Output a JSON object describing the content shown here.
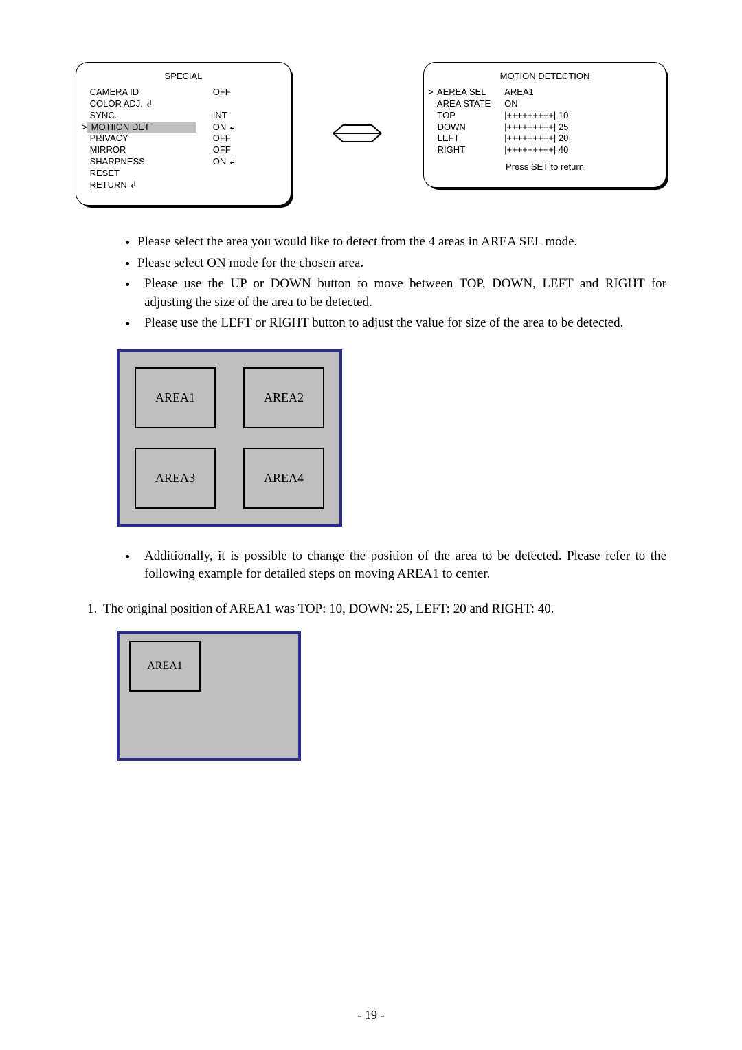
{
  "colors": {
    "page_bg": "#ffffff",
    "text": "#000000",
    "highlight_bg": "#bfbfbf",
    "panel_border": "#2c2c8a",
    "panel_bg": "#bfbfbf"
  },
  "left_menu": {
    "title": "SPECIAL",
    "items": [
      {
        "label": "CAMERA ID",
        "value": "OFF",
        "caret": false,
        "highlight": false,
        "label_enter": false,
        "value_enter": false
      },
      {
        "label": "COLOR ADJ.",
        "value": "",
        "caret": false,
        "highlight": false,
        "label_enter": true,
        "value_enter": false
      },
      {
        "label": "SYNC.",
        "value": "INT",
        "caret": false,
        "highlight": false,
        "label_enter": false,
        "value_enter": false
      },
      {
        "label": "MOTIION DET",
        "value": "ON",
        "caret": true,
        "highlight": true,
        "label_enter": false,
        "value_enter": true
      },
      {
        "label": "PRIVACY",
        "value": "OFF",
        "caret": false,
        "highlight": false,
        "label_enter": false,
        "value_enter": false
      },
      {
        "label": "MIRROR",
        "value": "OFF",
        "caret": false,
        "highlight": false,
        "label_enter": false,
        "value_enter": false
      },
      {
        "label": "SHARPNESS",
        "value": "ON",
        "caret": false,
        "highlight": false,
        "label_enter": false,
        "value_enter": true
      },
      {
        "label": "RESET",
        "value": "",
        "caret": false,
        "highlight": false,
        "label_enter": false,
        "value_enter": false
      },
      {
        "label": "RETURN",
        "value": "",
        "caret": false,
        "highlight": false,
        "label_enter": true,
        "value_enter": false
      }
    ]
  },
  "right_menu": {
    "title": "MOTION DETECTION",
    "items": [
      {
        "label": "AEREA SEL",
        "value": "AREA1",
        "caret": true
      },
      {
        "label": "AREA STATE",
        "value": "ON",
        "caret": false
      },
      {
        "label": "TOP",
        "value": "|+++++++++| 10",
        "caret": false
      },
      {
        "label": "DOWN",
        "value": "|+++++++++| 25",
        "caret": false
      },
      {
        "label": "LEFT",
        "value": "|+++++++++| 20",
        "caret": false
      },
      {
        "label": "RIGHT",
        "value": "|+++++++++| 40",
        "caret": false
      }
    ],
    "footer": "Press SET to return"
  },
  "bullets_top": [
    "Please select the area you would like to detect from the 4 areas in AREA SEL mode.",
    "Please select ON mode for the chosen area.",
    "Please use the UP or DOWN button to move between TOP, DOWN, LEFT and RIGHT for adjusting the size of the area to be detected.",
    "Please use the LEFT or RIGHT button to adjust the value for size of the area to be detected."
  ],
  "area_grid": {
    "cells": [
      "AREA1",
      "AREA2",
      "AREA3",
      "AREA4"
    ]
  },
  "bullets_mid": [
    "Additionally, it is possible to change the position of the area to be detected. Please refer to the following example for detailed steps on moving AREA1 to center."
  ],
  "numbered": [
    "The original position of AREA1 was TOP: 10, DOWN: 25, LEFT: 20 and RIGHT: 40."
  ],
  "area_single": {
    "label": "AREA1"
  },
  "page_number": "- 19 -",
  "arrow": {
    "stroke": "#000000",
    "stroke_width": 2
  }
}
